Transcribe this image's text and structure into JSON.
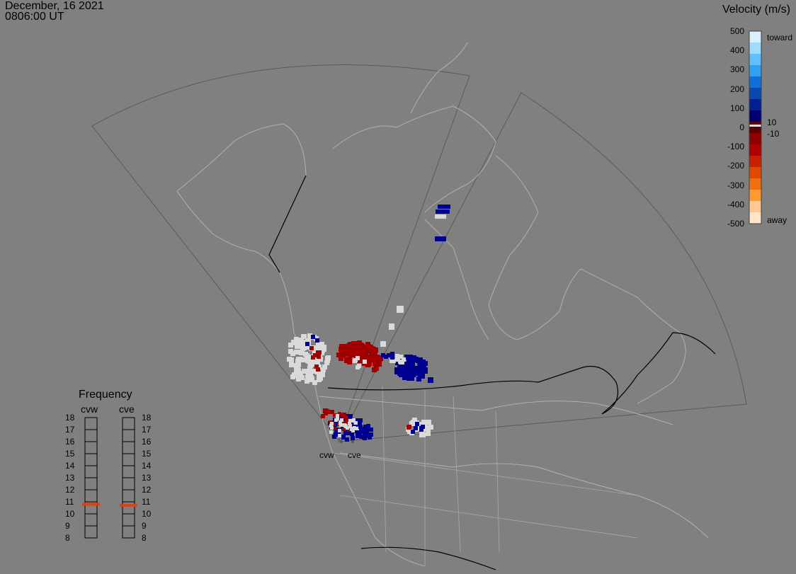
{
  "header": {
    "date": "December, 16 2021",
    "time": "0806:00 UT"
  },
  "colorbar": {
    "title": "Velocity (m/s)",
    "ticks": [
      "500",
      "400",
      "300",
      "200",
      "100",
      "0",
      "-100",
      "-200",
      "-300",
      "-400",
      "-500"
    ],
    "toward_label": "toward",
    "away_label": "away",
    "pos_threshold": "10",
    "neg_threshold": "-10"
  },
  "frequency": {
    "title": "Frequency",
    "radars": [
      {
        "name": "cvw",
        "value_mhz": 10.8
      },
      {
        "name": "cve",
        "value_mhz": 10.7
      }
    ],
    "ticks": [
      "18",
      "17",
      "16",
      "15",
      "14",
      "13",
      "12",
      "11",
      "10",
      "9",
      "8"
    ]
  },
  "radar_labels": [
    "cvw",
    "cve"
  ],
  "colors": {
    "background": "#808080",
    "toward_dark": "#000090",
    "away_dark": "#a00000",
    "ground_scatter": "#d9d9d9",
    "freq_marker": "#e04010"
  }
}
